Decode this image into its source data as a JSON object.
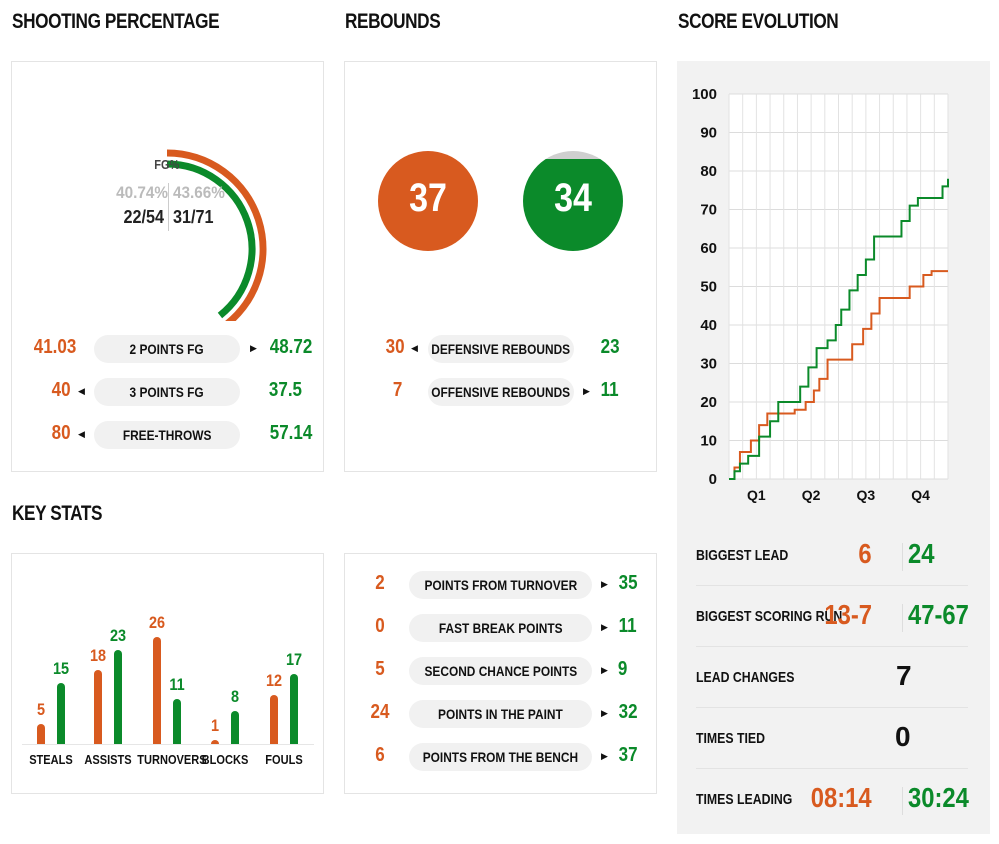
{
  "headers": {
    "shooting": "SHOOTING PERCENTAGE",
    "rebounds": "REBOUNDS",
    "score": "SCORE EVOLUTION",
    "key": "KEY STATS"
  },
  "colors": {
    "home": "#d85a1f",
    "away": "#0b8a2a"
  },
  "shooting": {
    "gauge_label": "FG%",
    "home_pct": "40.74%",
    "away_pct": "43.66%",
    "home_made": "22/54",
    "away_made": "31/71",
    "home_fraction": 0.4074,
    "away_fraction": 0.4366,
    "rows": [
      {
        "label": "2 POINTS FG",
        "home": "41.03",
        "away": "48.72",
        "arrow": "right"
      },
      {
        "label": "3 POINTS FG",
        "home": "40",
        "away": "37.5",
        "arrow": "left"
      },
      {
        "label": "FREE-THROWS",
        "home": "80",
        "away": "57.14",
        "arrow": "left"
      }
    ]
  },
  "rebounds": {
    "home_total": "37",
    "away_total": "34",
    "rows": [
      {
        "label": "DEFENSIVE REBOUNDS",
        "home": "30",
        "away": "23",
        "arrow": "left"
      },
      {
        "label": "OFFENSIVE REBOUNDS",
        "home": "7",
        "away": "11",
        "arrow": "right"
      }
    ]
  },
  "key_stats": {
    "categories": [
      "STEALS",
      "ASSISTS",
      "TURNOVERS",
      "BLOCKS",
      "FOULS"
    ],
    "home": [
      5,
      18,
      26,
      1,
      12
    ],
    "away": [
      15,
      23,
      11,
      8,
      17
    ],
    "home_labels": [
      "5",
      "18",
      "26",
      "1",
      "12"
    ],
    "away_labels": [
      "15",
      "23",
      "11",
      "8",
      "17"
    ]
  },
  "points": {
    "rows": [
      {
        "label": "POINTS FROM TURNOVER",
        "home": "2",
        "away": "35"
      },
      {
        "label": "FAST BREAK POINTS",
        "home": "0",
        "away": "11"
      },
      {
        "label": "SECOND CHANCE POINTS",
        "home": "5",
        "away": "9"
      },
      {
        "label": "POINTS IN THE PAINT",
        "home": "24",
        "away": "32"
      },
      {
        "label": "POINTS FROM THE BENCH",
        "home": "6",
        "away": "37"
      }
    ]
  },
  "chart_data": {
    "type": "line",
    "title": "SCORE EVOLUTION",
    "xlabel": "",
    "ylabel": "",
    "categories": [
      "Q1",
      "Q2",
      "Q3",
      "Q4"
    ],
    "ylim": [
      0,
      100
    ],
    "yticks": [
      "0",
      "10",
      "20",
      "30",
      "40",
      "50",
      "60",
      "70",
      "80",
      "90",
      "100"
    ],
    "grid": true,
    "x_range": [
      0,
      4
    ],
    "series": [
      {
        "color": "#d85a1f",
        "points": [
          [
            0,
            0
          ],
          [
            0.1,
            3
          ],
          [
            0.2,
            7
          ],
          [
            0.4,
            10
          ],
          [
            0.55,
            14
          ],
          [
            0.7,
            17
          ],
          [
            1.0,
            17
          ],
          [
            1.2,
            18
          ],
          [
            1.4,
            20
          ],
          [
            1.55,
            23
          ],
          [
            1.65,
            26
          ],
          [
            1.8,
            31
          ],
          [
            2.1,
            31
          ],
          [
            2.25,
            35
          ],
          [
            2.45,
            39
          ],
          [
            2.6,
            43
          ],
          [
            2.75,
            47
          ],
          [
            3.1,
            47
          ],
          [
            3.3,
            50
          ],
          [
            3.55,
            53
          ],
          [
            3.7,
            54
          ],
          [
            4.0,
            54
          ]
        ]
      },
      {
        "color": "#0b8a2a",
        "points": [
          [
            0,
            0
          ],
          [
            0.1,
            2
          ],
          [
            0.2,
            4
          ],
          [
            0.35,
            6
          ],
          [
            0.55,
            11
          ],
          [
            0.75,
            15
          ],
          [
            0.9,
            20
          ],
          [
            1.1,
            20
          ],
          [
            1.3,
            24
          ],
          [
            1.45,
            29
          ],
          [
            1.6,
            34
          ],
          [
            1.8,
            36
          ],
          [
            1.95,
            40
          ],
          [
            2.05,
            44
          ],
          [
            2.2,
            49
          ],
          [
            2.35,
            53
          ],
          [
            2.5,
            57
          ],
          [
            2.65,
            63
          ],
          [
            3.0,
            63
          ],
          [
            3.15,
            67
          ],
          [
            3.3,
            71
          ],
          [
            3.45,
            73
          ],
          [
            3.75,
            73
          ],
          [
            3.9,
            76
          ],
          [
            4.0,
            78
          ]
        ]
      }
    ]
  },
  "summary": [
    {
      "label": "BIGGEST LEAD",
      "home": "6",
      "away": "24"
    },
    {
      "label": "BIGGEST SCORING RUN",
      "home": "13-7",
      "away": "47-67"
    },
    {
      "label": "LEAD CHANGES",
      "value": "7"
    },
    {
      "label": "TIMES TIED",
      "value": "0"
    },
    {
      "label": "TIMES LEADING",
      "home": "08:14",
      "away": "30:24"
    }
  ]
}
